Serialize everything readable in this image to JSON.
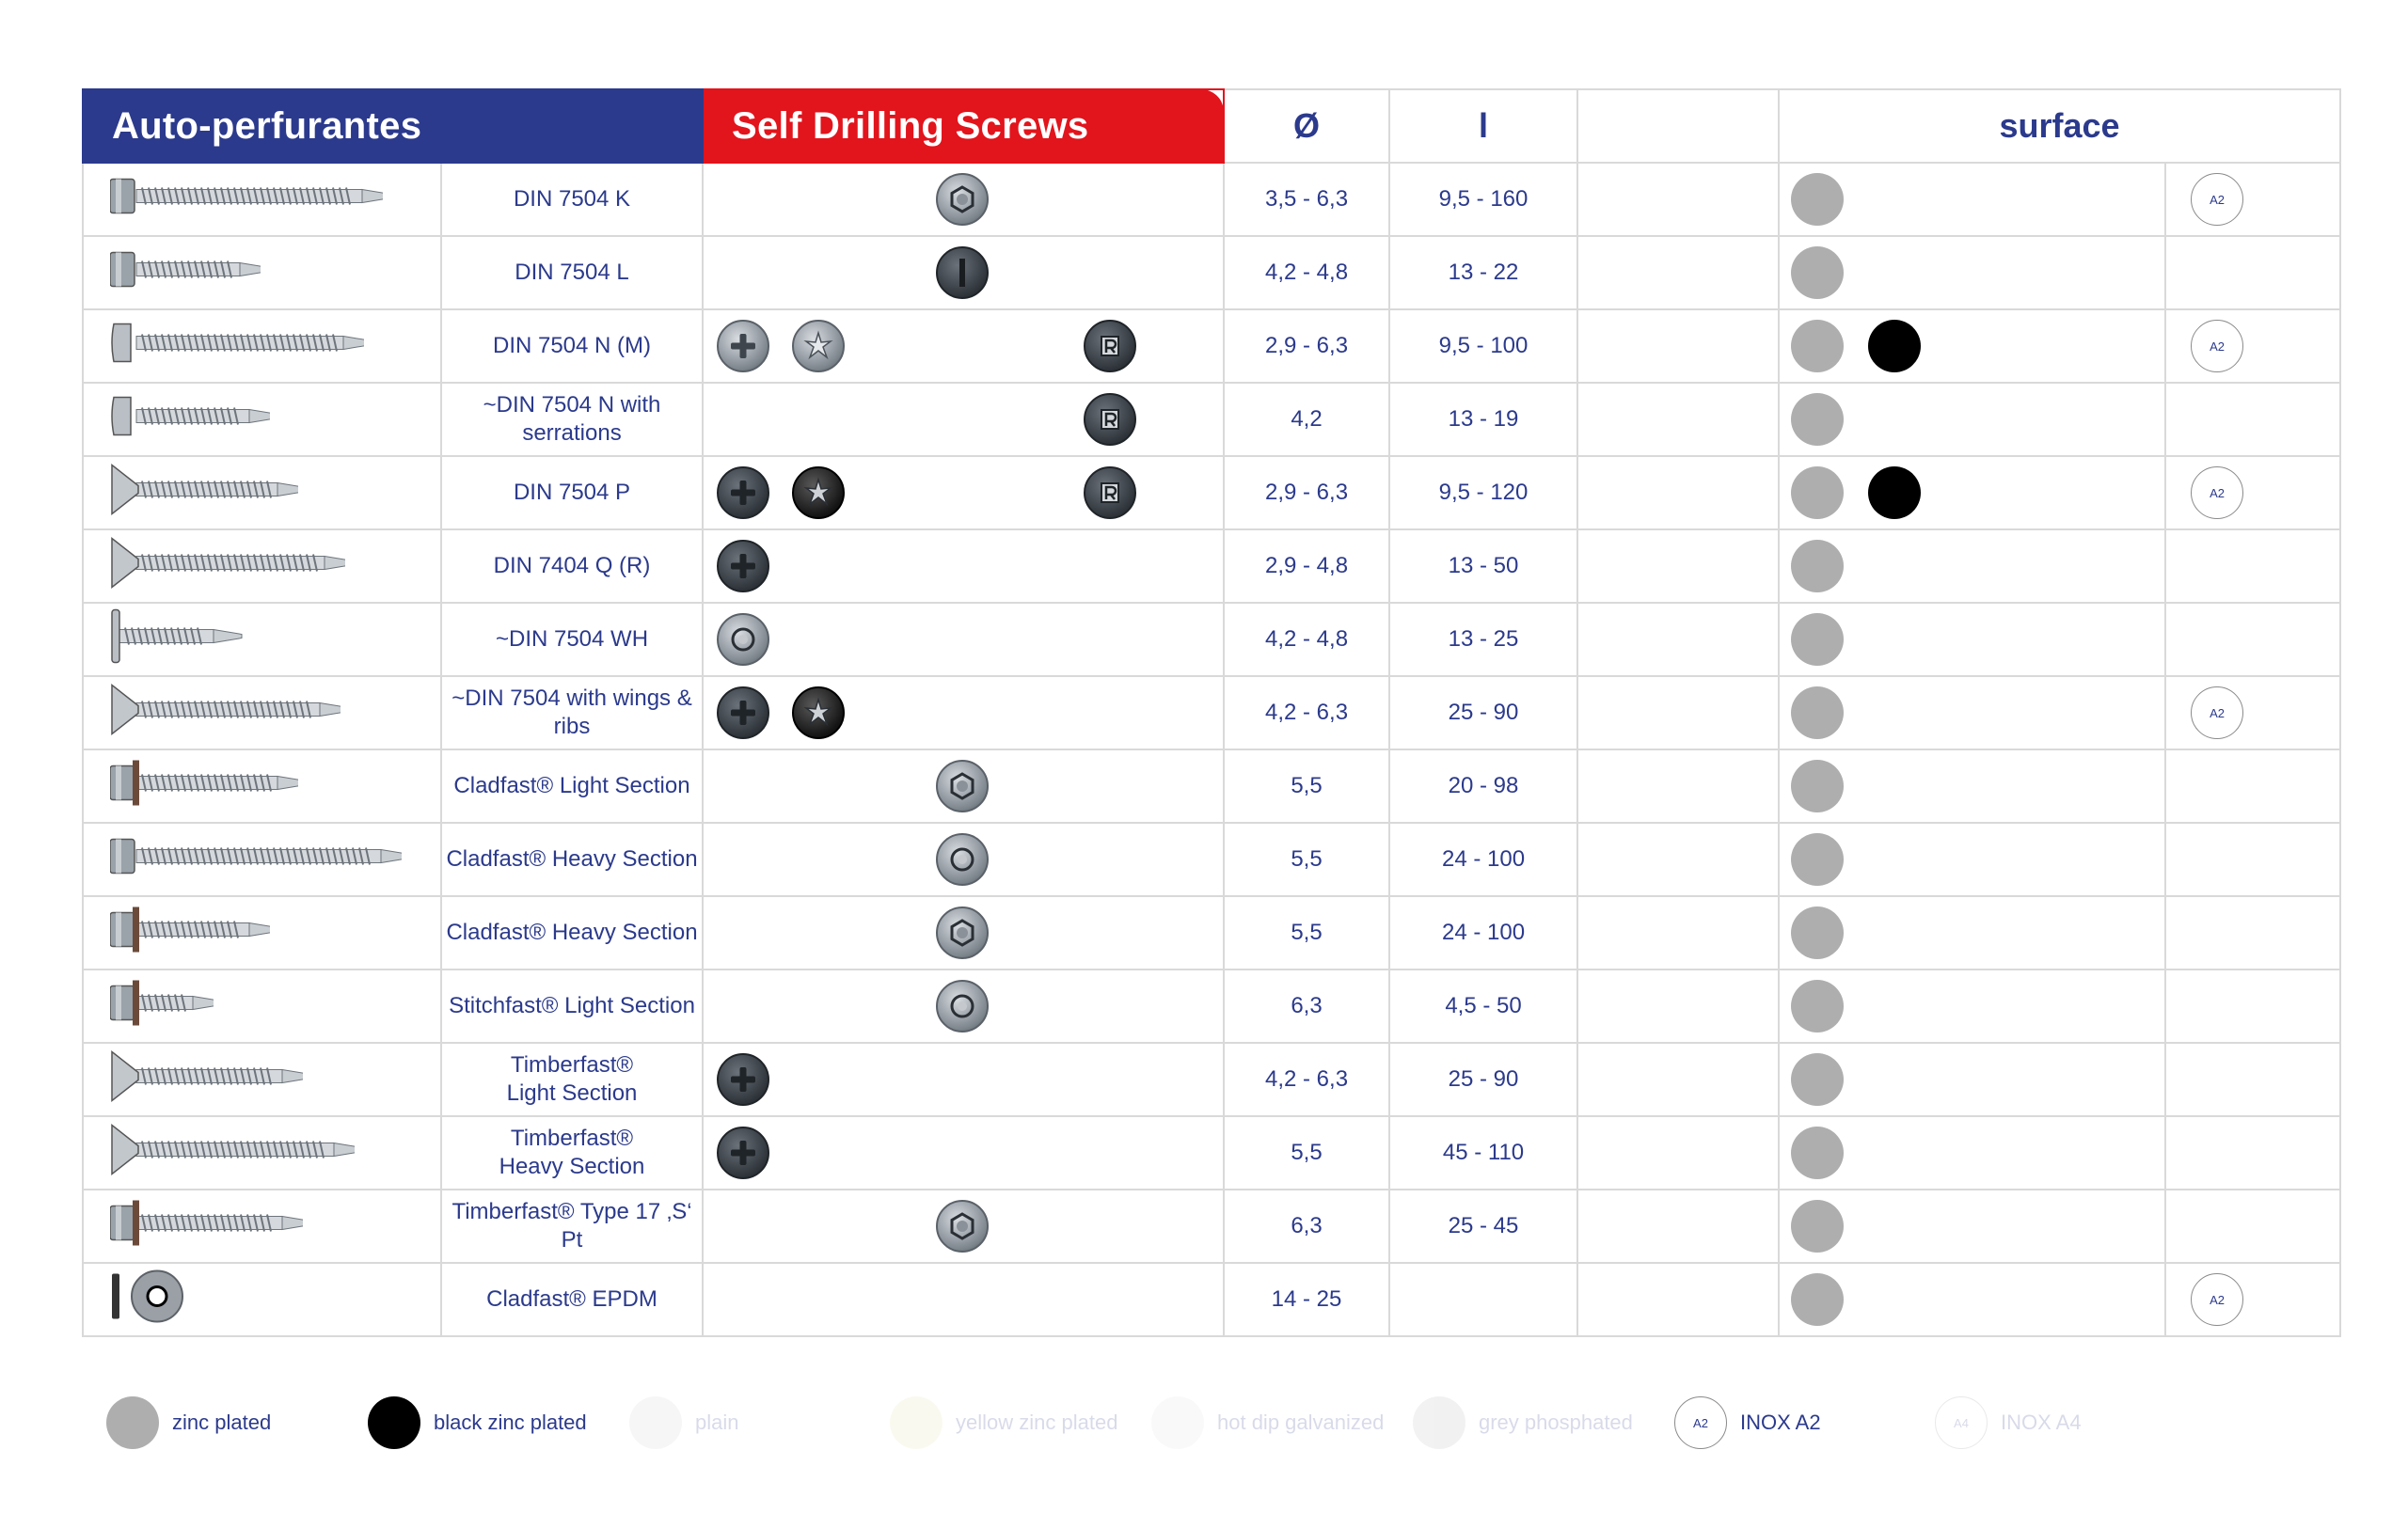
{
  "header": {
    "title_pt": "Auto-perfurantes",
    "title_en": "Self Drilling Screws",
    "col_diameter": "Ø",
    "col_length": "l",
    "col_surface": "surface"
  },
  "rows": [
    {
      "designation": "DIN 7504 K",
      "diameter": "3,5 - 6,3",
      "length": "9,5 - 160"
    },
    {
      "designation": "DIN 7504 L",
      "diameter": "4,2 - 4,8",
      "length": "13 - 22"
    },
    {
      "designation": "DIN 7504 N (M)",
      "diameter": "2,9 - 6,3",
      "length": "9,5 - 100"
    },
    {
      "designation": "~DIN 7504 N with serrations",
      "diameter": "4,2",
      "length": "13 - 19"
    },
    {
      "designation": "DIN 7504 P",
      "diameter": "2,9 - 6,3",
      "length": "9,5 - 120"
    },
    {
      "designation": "DIN 7404 Q (R)",
      "diameter": "2,9 - 4,8",
      "length": "13 - 50"
    },
    {
      "designation": "~DIN 7504 WH",
      "diameter": "4,2 - 4,8",
      "length": "13 - 25"
    },
    {
      "designation": "~DIN 7504 with wings & ribs",
      "diameter": "4,2 - 6,3",
      "length": "25 - 90"
    },
    {
      "designation": "Cladfast® Light Section",
      "diameter": "5,5",
      "length": "20 - 98"
    },
    {
      "designation": "Cladfast® Heavy Section",
      "diameter": "5,5",
      "length": "24 - 100"
    },
    {
      "designation": "Cladfast® Heavy Section",
      "diameter": "5,5",
      "length": "24 - 100"
    },
    {
      "designation": "Stitchfast® Light Section",
      "diameter": "6,3",
      "length": "4,5 - 50"
    },
    {
      "designation": "Timberfast®",
      "designation2": "Light Section",
      "diameter": "4,2 - 6,3",
      "length": "25 - 90"
    },
    {
      "designation": "Timberfast®",
      "designation2": "Heavy Section",
      "diameter": "5,5",
      "length": "45 - 110"
    },
    {
      "designation": "Timberfast® Type 17 ‚S‘ Pt",
      "diameter": "6,3",
      "length": "25 - 45"
    },
    {
      "designation": "Cladfast® EPDM",
      "diameter": "14 - 25",
      "length": ""
    }
  ],
  "surface_marks": {
    "a2": "A2"
  },
  "legend": [
    {
      "label": "zinc plated",
      "color": "#aeaeae"
    },
    {
      "label": "black zinc plated",
      "color": "#000000"
    },
    {
      "label": "plain",
      "color": "#cfcfcf"
    },
    {
      "label": "yellow zinc plated",
      "color": "#e8dfb0"
    },
    {
      "label": "hot dip galvanized",
      "color": "#e0e0e0"
    },
    {
      "label": "grey phosphated",
      "color": "#b8b8b8"
    },
    {
      "label": "INOX A2",
      "mark": "A2"
    },
    {
      "label": "INOX A4",
      "mark": "A4"
    }
  ],
  "colors": {
    "brand_blue": "#2b3a8c",
    "brand_red": "#e2141c",
    "grid": "#d9d9d9"
  }
}
